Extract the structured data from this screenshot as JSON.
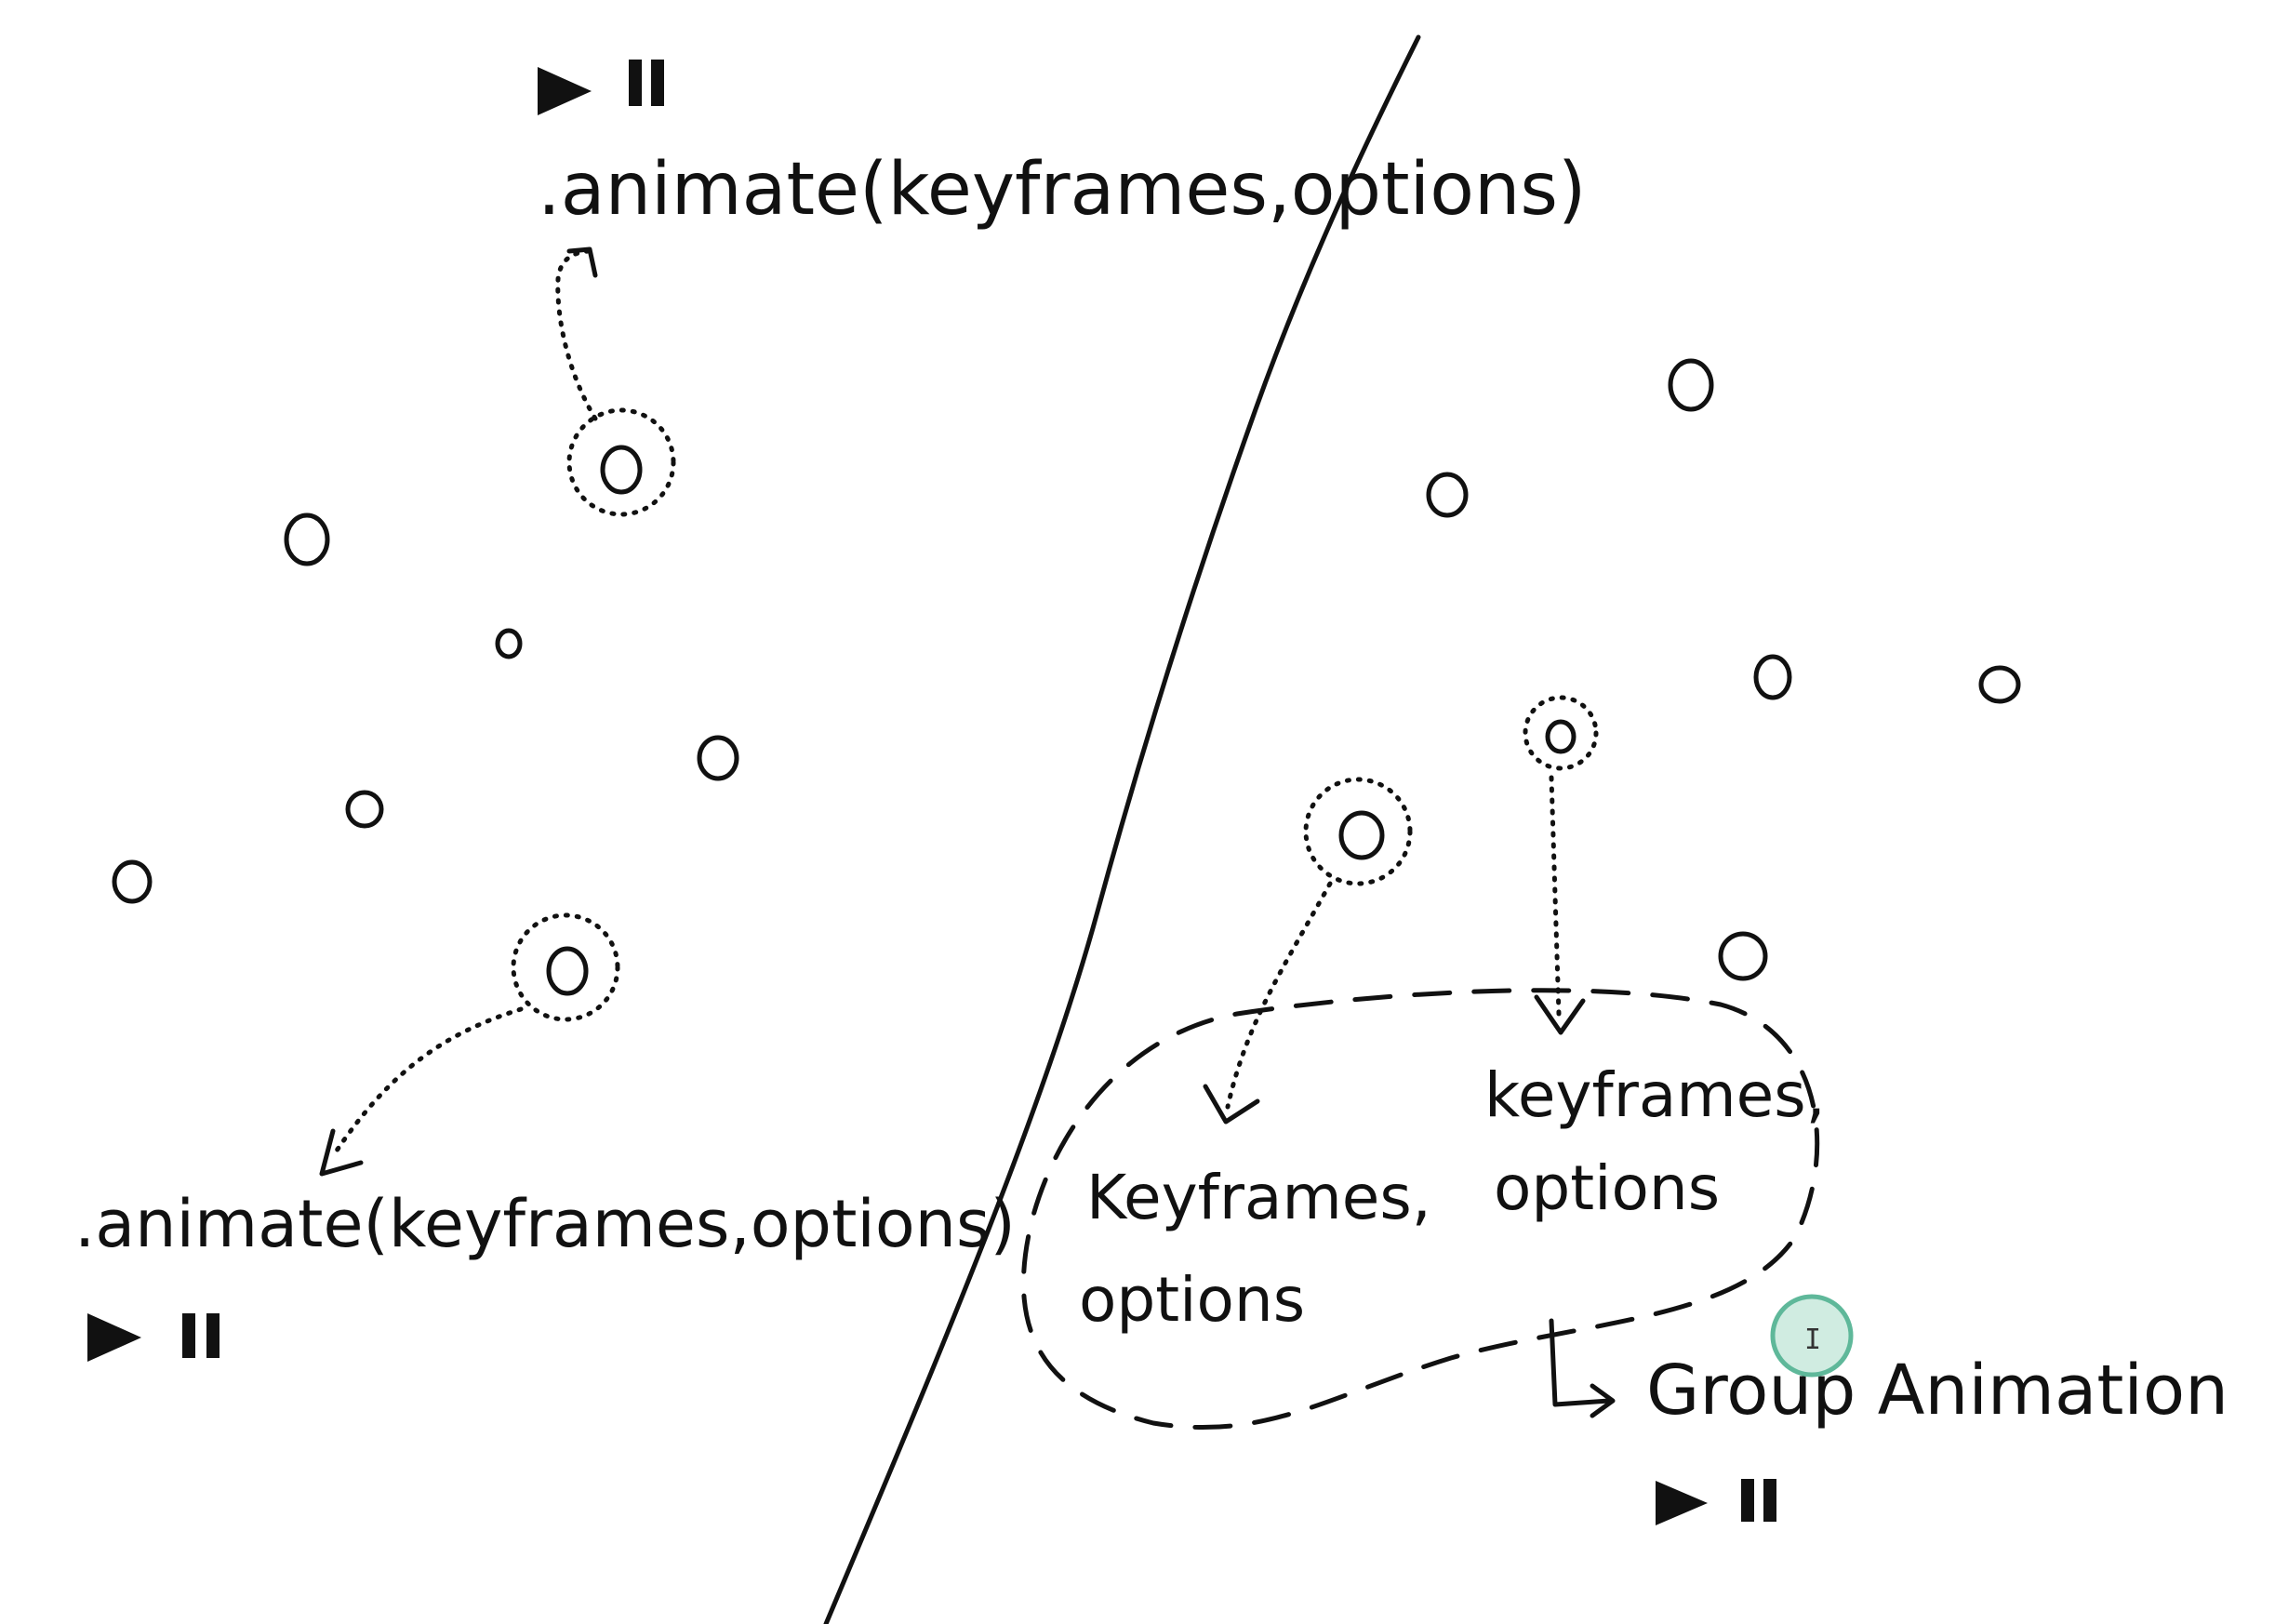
{
  "left_panel": {
    "top_call": ".animate(keyframes,options)",
    "bottom_call": ".animate(keyframes,options)",
    "play_icon": "play-icon",
    "pause_icon": "pause-icon"
  },
  "right_panel": {
    "group_item_1": {
      "line1": "Keyframes,",
      "line2": "options"
    },
    "group_item_2": {
      "line1": "keyframes,",
      "line2": "options"
    },
    "group_label": "Group Animation",
    "group_arrow_icon": "return-arrow-icon"
  },
  "colors": {
    "ink": "#111111",
    "background": "#ffffff",
    "cursor_ring": "#5fb89a"
  }
}
